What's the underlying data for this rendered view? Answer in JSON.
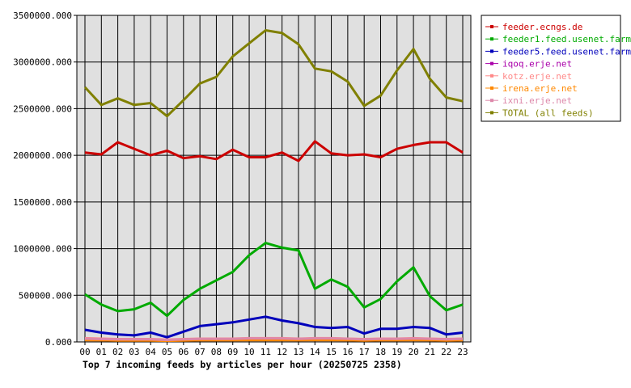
{
  "chart_data": {
    "type": "line",
    "title": "Top 7 incoming feeds by articles per hour (20250725 2358)",
    "xlabel": "",
    "ylabel": "",
    "x": [
      "00",
      "01",
      "02",
      "03",
      "04",
      "05",
      "06",
      "07",
      "08",
      "09",
      "10",
      "11",
      "12",
      "13",
      "14",
      "15",
      "16",
      "17",
      "18",
      "19",
      "20",
      "21",
      "22",
      "23"
    ],
    "ylim": [
      0,
      3500000
    ],
    "yticks": [
      0,
      500000,
      1000000,
      1500000,
      2000000,
      2500000,
      3000000,
      3500000
    ],
    "ytick_labels": [
      "0.000",
      "500000.000",
      "1000000.000",
      "1500000.000",
      "2000000.000",
      "2500000.000",
      "3000000.000",
      "3500000.000"
    ],
    "grid": true,
    "legend_position": "top-right",
    "series": [
      {
        "name": "feeder.ecngs.de",
        "color": "#cc0000",
        "values": [
          2030000,
          2010000,
          2140000,
          2070000,
          2000000,
          2050000,
          1970000,
          1990000,
          1960000,
          2060000,
          1980000,
          1980000,
          2030000,
          1940000,
          2150000,
          2020000,
          2000000,
          2010000,
          1980000,
          2070000,
          2110000,
          2140000,
          2140000,
          2030000
        ]
      },
      {
        "name": "feeder1.feed.usenet.farm",
        "color": "#00aa00",
        "values": [
          510000,
          400000,
          330000,
          350000,
          420000,
          280000,
          450000,
          570000,
          660000,
          750000,
          930000,
          1060000,
          1010000,
          980000,
          570000,
          670000,
          590000,
          370000,
          460000,
          650000,
          800000,
          490000,
          340000,
          400000
        ]
      },
      {
        "name": "feeder5.feed.usenet.farm",
        "color": "#0000bb",
        "values": [
          130000,
          100000,
          80000,
          70000,
          100000,
          50000,
          110000,
          170000,
          190000,
          210000,
          240000,
          270000,
          230000,
          200000,
          160000,
          150000,
          160000,
          90000,
          140000,
          140000,
          160000,
          150000,
          80000,
          100000
        ]
      },
      {
        "name": "iqoq.erje.net",
        "color": "#aa00aa",
        "values": [
          30000,
          25000,
          25000,
          20000,
          25000,
          20000,
          25000,
          30000,
          30000,
          30000,
          35000,
          35000,
          30000,
          30000,
          30000,
          30000,
          30000,
          25000,
          30000,
          30000,
          30000,
          30000,
          25000,
          25000
        ]
      },
      {
        "name": "kotz.erje.net",
        "color": "#ff8888",
        "values": [
          40000,
          35000,
          30000,
          30000,
          30000,
          25000,
          30000,
          35000,
          35000,
          35000,
          40000,
          40000,
          40000,
          35000,
          40000,
          40000,
          35000,
          30000,
          35000,
          35000,
          40000,
          35000,
          30000,
          35000
        ]
      },
      {
        "name": "irena.erje.net",
        "color": "#ff8800",
        "values": [
          20000,
          18000,
          15000,
          15000,
          15000,
          12000,
          15000,
          18000,
          18000,
          18000,
          20000,
          20000,
          20000,
          18000,
          20000,
          20000,
          18000,
          15000,
          18000,
          18000,
          20000,
          18000,
          15000,
          18000
        ]
      },
      {
        "name": "ixni.erje.net",
        "color": "#dd88aa",
        "values": [
          35000,
          30000,
          28000,
          28000,
          28000,
          22000,
          28000,
          32000,
          32000,
          32000,
          38000,
          38000,
          36000,
          32000,
          38000,
          38000,
          34000,
          28000,
          32000,
          32000,
          36000,
          32000,
          28000,
          32000
        ]
      },
      {
        "name": "TOTAL (all feeds)",
        "color": "#808000",
        "values": [
          2730000,
          2540000,
          2610000,
          2540000,
          2560000,
          2420000,
          2590000,
          2770000,
          2840000,
          3060000,
          3200000,
          3340000,
          3310000,
          3190000,
          2930000,
          2900000,
          2790000,
          2530000,
          2640000,
          2910000,
          3140000,
          2820000,
          2620000,
          2580000
        ]
      }
    ]
  }
}
